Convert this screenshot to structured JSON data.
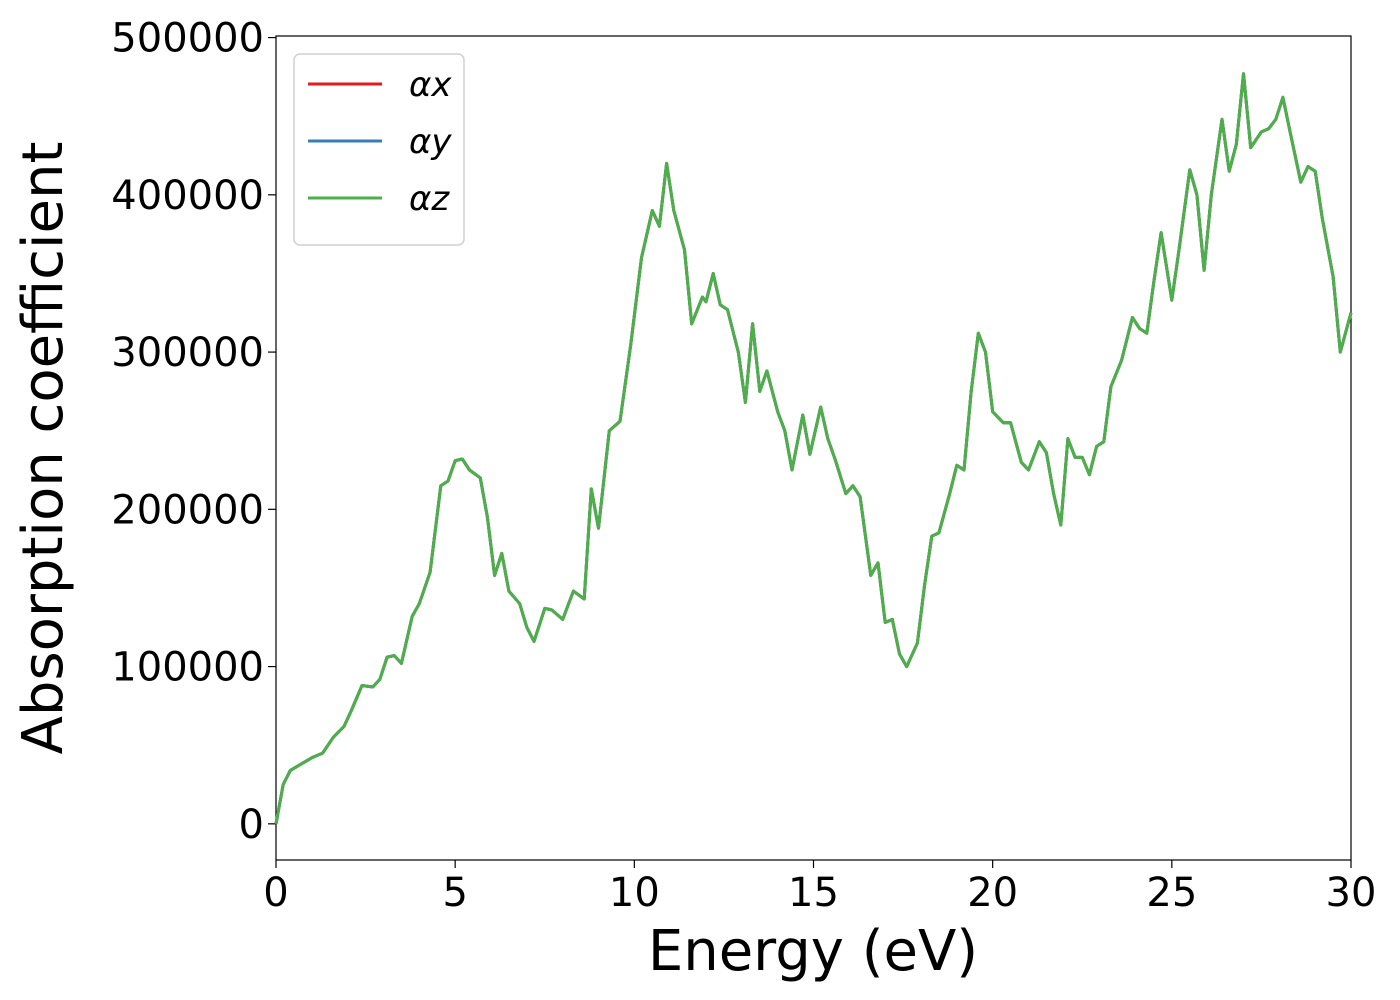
{
  "chart_data": {
    "type": "line",
    "x_label": "Energy (eV)",
    "y_label": "Absorption coefficient",
    "xlim": [
      0,
      30
    ],
    "ylim": [
      -23000,
      501000
    ],
    "xticks": [
      0,
      5,
      10,
      15,
      20,
      25,
      30
    ],
    "yticks": [
      0,
      100000,
      200000,
      300000,
      400000,
      500000
    ],
    "legend": "upper left",
    "x": [
      0,
      0.2,
      0.4,
      0.7,
      1.0,
      1.3,
      1.6,
      1.9,
      2.1,
      2.4,
      2.7,
      2.9,
      3.1,
      3.3,
      3.5,
      3.8,
      4.0,
      4.3,
      4.6,
      4.8,
      5.0,
      5.2,
      5.4,
      5.7,
      5.9,
      6.1,
      6.3,
      6.5,
      6.8,
      7.0,
      7.2,
      7.5,
      7.7,
      8.0,
      8.3,
      8.6,
      8.8,
      9.0,
      9.3,
      9.6,
      9.9,
      10.2,
      10.5,
      10.7,
      10.9,
      11.1,
      11.4,
      11.6,
      11.9,
      12.0,
      12.2,
      12.4,
      12.6,
      12.9,
      13.1,
      13.3,
      13.5,
      13.7,
      14.0,
      14.2,
      14.4,
      14.7,
      14.9,
      15.2,
      15.4,
      15.6,
      15.9,
      16.1,
      16.3,
      16.6,
      16.8,
      17.0,
      17.2,
      17.4,
      17.6,
      17.9,
      18.1,
      18.3,
      18.5,
      18.8,
      19.0,
      19.2,
      19.4,
      19.6,
      19.8,
      20.0,
      20.3,
      20.5,
      20.8,
      21.0,
      21.3,
      21.5,
      21.7,
      21.9,
      22.1,
      22.3,
      22.5,
      22.7,
      22.9,
      23.1,
      23.3,
      23.6,
      23.9,
      24.1,
      24.3,
      24.5,
      24.7,
      25.0,
      25.2,
      25.5,
      25.7,
      25.9,
      26.1,
      26.4,
      26.6,
      26.8,
      27.0,
      27.2,
      27.5,
      27.7,
      27.9,
      28.1,
      28.3,
      28.6,
      28.8,
      29.0,
      29.2,
      29.5,
      29.7,
      30.0
    ],
    "series": [
      {
        "name": "αx",
        "color": "#e41a1c",
        "values": [
          0,
          25000,
          34000,
          38000,
          42000,
          45000,
          55000,
          62000,
          72000,
          88000,
          87000,
          92000,
          106000,
          107000,
          102000,
          132000,
          140000,
          160000,
          215000,
          218000,
          231000,
          232000,
          225000,
          220000,
          195000,
          158000,
          172000,
          148000,
          140000,
          125000,
          116000,
          137000,
          136000,
          130000,
          148000,
          143000,
          213000,
          188000,
          250000,
          256000,
          305000,
          360000,
          390000,
          380000,
          420000,
          390000,
          365000,
          318000,
          335000,
          332000,
          350000,
          330000,
          327000,
          300000,
          268000,
          318000,
          275000,
          288000,
          262000,
          250000,
          225000,
          260000,
          235000,
          265000,
          245000,
          232000,
          210000,
          215000,
          208000,
          158000,
          166000,
          128000,
          130000,
          108000,
          100000,
          115000,
          152000,
          183000,
          185000,
          210000,
          228000,
          225000,
          275000,
          312000,
          300000,
          262000,
          255000,
          255000,
          230000,
          225000,
          243000,
          236000,
          210000,
          190000,
          245000,
          233000,
          233000,
          222000,
          240000,
          243000,
          278000,
          295000,
          322000,
          315000,
          312000,
          345000,
          376000,
          333000,
          365000,
          416000,
          400000,
          352000,
          400000,
          448000,
          415000,
          432000,
          477000,
          430000,
          440000,
          442000,
          448000,
          462000,
          440000,
          408000,
          418000,
          415000,
          385000,
          348000,
          300000,
          325000
        ]
      },
      {
        "name": "αy",
        "color": "#377eb8",
        "values": [
          0,
          25000,
          34000,
          38000,
          42000,
          45000,
          55000,
          62000,
          72000,
          88000,
          87000,
          92000,
          106000,
          107000,
          102000,
          132000,
          140000,
          160000,
          215000,
          218000,
          231000,
          232000,
          225000,
          220000,
          195000,
          158000,
          172000,
          148000,
          140000,
          125000,
          116000,
          137000,
          136000,
          130000,
          148000,
          143000,
          213000,
          188000,
          250000,
          256000,
          305000,
          360000,
          390000,
          380000,
          420000,
          390000,
          365000,
          318000,
          335000,
          332000,
          350000,
          330000,
          327000,
          300000,
          268000,
          318000,
          275000,
          288000,
          262000,
          250000,
          225000,
          260000,
          235000,
          265000,
          245000,
          232000,
          210000,
          215000,
          208000,
          158000,
          166000,
          128000,
          130000,
          108000,
          100000,
          115000,
          152000,
          183000,
          185000,
          210000,
          228000,
          225000,
          275000,
          312000,
          300000,
          262000,
          255000,
          255000,
          230000,
          225000,
          243000,
          236000,
          210000,
          190000,
          245000,
          233000,
          233000,
          222000,
          240000,
          243000,
          278000,
          295000,
          322000,
          315000,
          312000,
          345000,
          376000,
          333000,
          365000,
          416000,
          400000,
          352000,
          400000,
          448000,
          415000,
          432000,
          477000,
          430000,
          440000,
          442000,
          448000,
          462000,
          440000,
          408000,
          418000,
          415000,
          385000,
          348000,
          300000,
          325000
        ]
      },
      {
        "name": "αz",
        "color": "#4daf4a",
        "values": [
          0,
          25000,
          34000,
          38000,
          42000,
          45000,
          55000,
          62000,
          72000,
          88000,
          87000,
          92000,
          106000,
          107000,
          102000,
          132000,
          140000,
          160000,
          215000,
          218000,
          231000,
          232000,
          225000,
          220000,
          195000,
          158000,
          172000,
          148000,
          140000,
          125000,
          116000,
          137000,
          136000,
          130000,
          148000,
          143000,
          213000,
          188000,
          250000,
          256000,
          305000,
          360000,
          390000,
          380000,
          420000,
          390000,
          365000,
          318000,
          335000,
          332000,
          350000,
          330000,
          327000,
          300000,
          268000,
          318000,
          275000,
          288000,
          262000,
          250000,
          225000,
          260000,
          235000,
          265000,
          245000,
          232000,
          210000,
          215000,
          208000,
          158000,
          166000,
          128000,
          130000,
          108000,
          100000,
          115000,
          152000,
          183000,
          185000,
          210000,
          228000,
          225000,
          275000,
          312000,
          300000,
          262000,
          255000,
          255000,
          230000,
          225000,
          243000,
          236000,
          210000,
          190000,
          245000,
          233000,
          233000,
          222000,
          240000,
          243000,
          278000,
          295000,
          322000,
          315000,
          312000,
          345000,
          376000,
          333000,
          365000,
          416000,
          400000,
          352000,
          400000,
          448000,
          415000,
          432000,
          477000,
          430000,
          440000,
          442000,
          448000,
          462000,
          440000,
          408000,
          418000,
          415000,
          385000,
          348000,
          300000,
          325000
        ]
      }
    ]
  }
}
